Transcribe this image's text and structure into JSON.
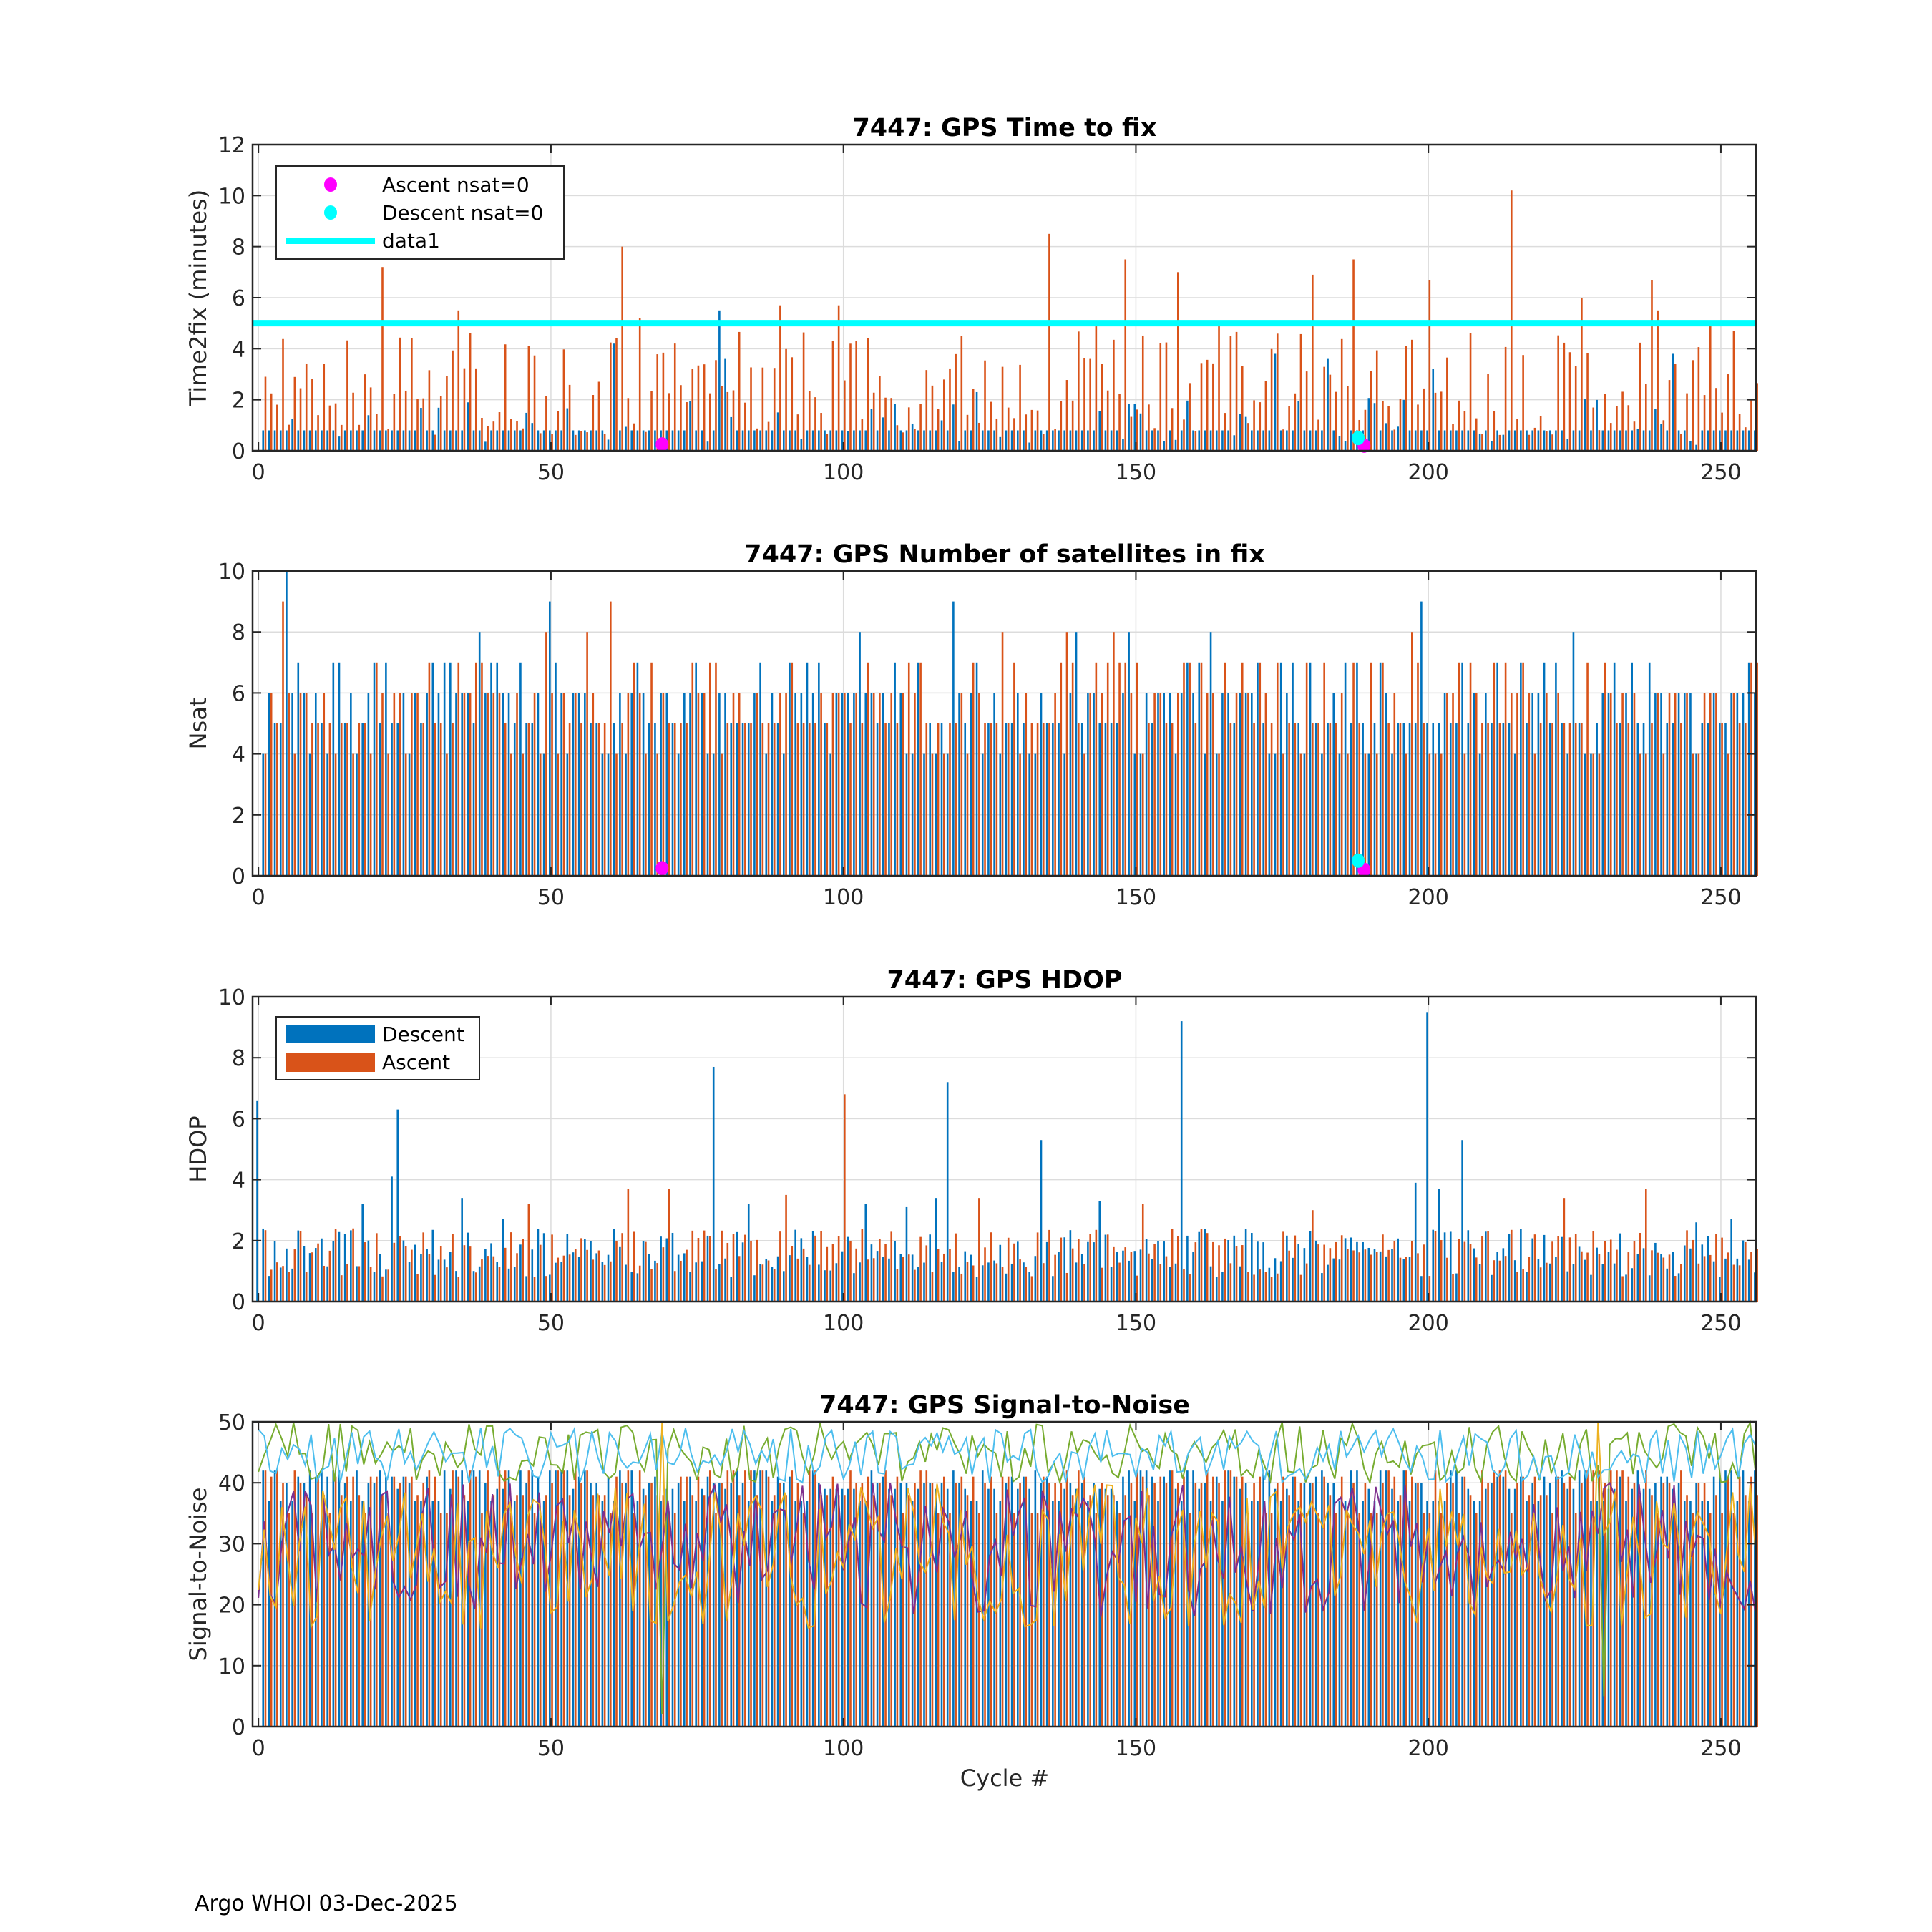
{
  "footer": "Argo WHOI 03-Dec-2025",
  "xlabel": "Cycle #",
  "colors": {
    "descent": "#0072BD",
    "ascent": "#D95319",
    "yellow": "#EDB120",
    "purple": "#7E2F8E",
    "green": "#77AC30",
    "lightblue": "#4DBEEE",
    "ascent_nsat0": "#FF00FF",
    "descent_nsat0": "#00FFFF",
    "threshold": "#00FFFF"
  },
  "chart_data": [
    {
      "type": "bar",
      "title": "7447: GPS Time to fix",
      "xlabel": "",
      "ylabel": "Time2fix (minutes)",
      "xlim": [
        -1,
        256
      ],
      "ylim": [
        0,
        12
      ],
      "xticks": [
        0,
        50,
        100,
        150,
        200,
        250
      ],
      "yticks": [
        0,
        2,
        4,
        6,
        8,
        10,
        12
      ],
      "grid": true,
      "legend_placement": "top-left",
      "legend": [
        "Ascent nsat=0",
        "Descent nsat=0",
        "data1"
      ],
      "n_cycles": 256,
      "seed": 11,
      "descent": {
        "typical": 0.8,
        "random_range": [
          0.2,
          2.2
        ],
        "random_fraction": 0.25,
        "spikes": [
          [
            61,
            4.2
          ],
          [
            79,
            5.5
          ],
          [
            80,
            3.6
          ],
          [
            123,
            2.3
          ],
          [
            174,
            3.8
          ],
          [
            183,
            3.6
          ],
          [
            201,
            3.2
          ],
          [
            242,
            3.8
          ]
        ]
      },
      "ascent": {
        "random_range": [
          0.6,
          4.8
        ],
        "spikes": [
          [
            21,
            7.2
          ],
          [
            34,
            5.5
          ],
          [
            62,
            8.0
          ],
          [
            65,
            5.2
          ],
          [
            89,
            5.7
          ],
          [
            99,
            5.7
          ],
          [
            135,
            8.5
          ],
          [
            143,
            5.0
          ],
          [
            148,
            7.5
          ],
          [
            157,
            7.0
          ],
          [
            164,
            5.0
          ],
          [
            180,
            6.9
          ],
          [
            187,
            7.5
          ],
          [
            200,
            6.7
          ],
          [
            214,
            10.2
          ],
          [
            226,
            6.0
          ],
          [
            238,
            6.7
          ],
          [
            239,
            5.5
          ],
          [
            248,
            5.1
          ]
        ]
      },
      "ascent_nsat0_points": [
        [
          69,
          0.25
        ],
        [
          189,
          0.2
        ]
      ],
      "descent_nsat0_points": [
        [
          188,
          0.5
        ]
      ],
      "threshold_line": 5
    },
    {
      "type": "bar",
      "title": "7447: GPS Number of satellites in fix",
      "xlabel": "",
      "ylabel": "Nsat",
      "xlim": [
        -1,
        256
      ],
      "ylim": [
        0,
        10
      ],
      "xticks": [
        0,
        50,
        100,
        150,
        200,
        250
      ],
      "yticks": [
        0,
        2,
        4,
        6,
        8,
        10
      ],
      "grid": true,
      "n_cycles": 256,
      "seed": 23,
      "descent": {
        "choices": [
          4,
          5,
          5,
          6,
          6,
          7
        ],
        "spikes": [
          [
            5,
            10
          ],
          [
            38,
            8
          ],
          [
            50,
            9
          ],
          [
            103,
            8
          ],
          [
            119,
            9
          ],
          [
            140,
            8
          ],
          [
            149,
            8
          ],
          [
            163,
            8
          ],
          [
            199,
            9
          ],
          [
            225,
            8
          ]
        ]
      },
      "ascent": {
        "choices": [
          4,
          5,
          5,
          6,
          6,
          7
        ],
        "spikes": [
          [
            4,
            9
          ],
          [
            37,
            7
          ],
          [
            49,
            8
          ],
          [
            56,
            8
          ],
          [
            60,
            9
          ],
          [
            127,
            8
          ],
          [
            138,
            8
          ],
          [
            146,
            8
          ],
          [
            197,
            8
          ],
          [
            256,
            7
          ]
        ]
      },
      "ascent_nsat0_points": [
        [
          69,
          0.25
        ],
        [
          189,
          0.2
        ]
      ],
      "descent_nsat0_points": [
        [
          188,
          0.5
        ]
      ]
    },
    {
      "type": "bar",
      "title": "7447: GPS HDOP",
      "xlabel": "",
      "ylabel": "HDOP",
      "xlim": [
        -1,
        256
      ],
      "ylim": [
        0,
        10
      ],
      "xticks": [
        0,
        50,
        100,
        150,
        200,
        250
      ],
      "yticks": [
        0,
        2,
        4,
        6,
        8,
        10
      ],
      "grid": true,
      "legend_placement": "top-left",
      "legend": [
        "Descent",
        "Ascent"
      ],
      "n_cycles": 256,
      "seed": 37,
      "descent": {
        "random_range": [
          0.8,
          2.4
        ],
        "spikes": [
          [
            0,
            6.6
          ],
          [
            18,
            3.2
          ],
          [
            23,
            4.1
          ],
          [
            24,
            6.3
          ],
          [
            35,
            3.4
          ],
          [
            42,
            2.7
          ],
          [
            78,
            7.7
          ],
          [
            84,
            3.2
          ],
          [
            104,
            3.2
          ],
          [
            111,
            3.1
          ],
          [
            116,
            3.4
          ],
          [
            118,
            7.2
          ],
          [
            134,
            5.3
          ],
          [
            144,
            3.3
          ],
          [
            158,
            9.2
          ],
          [
            198,
            3.9
          ],
          [
            200,
            9.5
          ],
          [
            202,
            3.7
          ],
          [
            206,
            5.3
          ],
          [
            246,
            2.6
          ],
          [
            252,
            2.7
          ]
        ]
      },
      "ascent": {
        "random_range": [
          0.8,
          2.4
        ],
        "spikes": [
          [
            16,
            2.4
          ],
          [
            46,
            3.2
          ],
          [
            63,
            3.7
          ],
          [
            70,
            3.7
          ],
          [
            90,
            3.5
          ],
          [
            100,
            6.8
          ],
          [
            123,
            3.4
          ],
          [
            151,
            3.2
          ],
          [
            180,
            3.0
          ],
          [
            223,
            3.4
          ],
          [
            237,
            3.7
          ]
        ]
      }
    },
    {
      "type": "bar",
      "title": "7447: GPS Signal-to-Noise",
      "xlabel": "Cycle #",
      "ylabel": "Signal-to-Noise",
      "xlim": [
        -1,
        256
      ],
      "ylim": [
        0,
        50
      ],
      "xticks": [
        0,
        50,
        100,
        150,
        200,
        250
      ],
      "yticks": [
        0,
        10,
        20,
        30,
        40,
        50
      ],
      "grid": true,
      "n_cycles": 256,
      "seed": 53,
      "descent": {
        "choices": [
          37,
          39,
          40,
          41,
          42
        ]
      },
      "ascent": {
        "choices": [
          35,
          38,
          40,
          41,
          42
        ]
      },
      "lines": [
        {
          "name": "green",
          "random_range": [
            40,
            50
          ],
          "spikes": [
            [
              69,
              2
            ],
            [
              230,
              5
            ]
          ]
        },
        {
          "name": "lightblue",
          "random_range": [
            40,
            49
          ]
        },
        {
          "name": "purple",
          "random_range": [
            18,
            40
          ]
        },
        {
          "name": "yellow",
          "random_range": [
            16,
            40
          ],
          "spikes": [
            [
              69,
              50
            ],
            [
              229,
              50
            ]
          ]
        }
      ]
    }
  ]
}
